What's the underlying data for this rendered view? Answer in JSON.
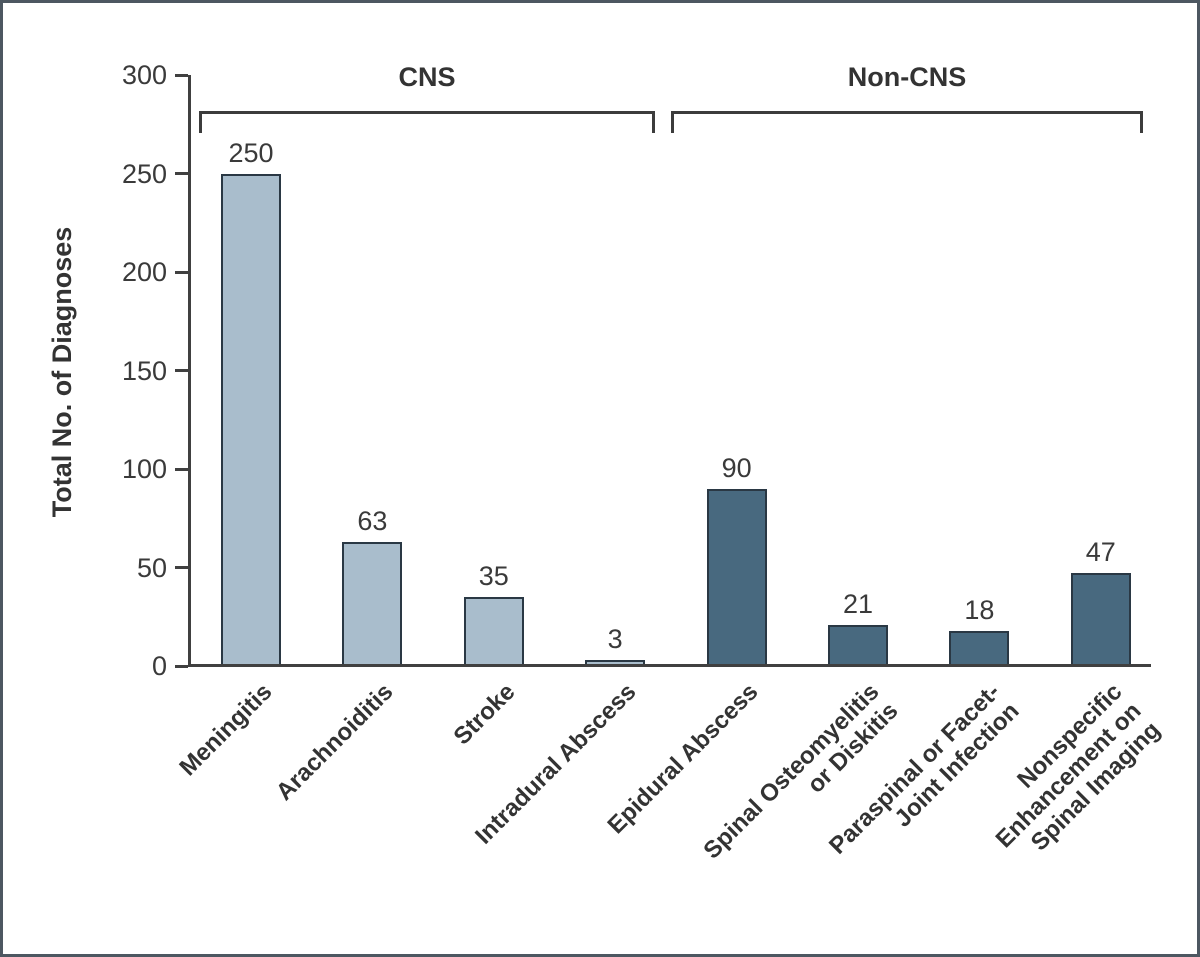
{
  "chart_data": {
    "type": "bar",
    "title": "",
    "xlabel": "",
    "ylabel": "Total No. of Diagnoses",
    "ylim": [
      0,
      300
    ],
    "yticks": [
      0,
      50,
      100,
      150,
      200,
      250,
      300
    ],
    "grid": false,
    "legend": "none",
    "categories": [
      "Meningitis",
      "Arachnoiditis",
      "Stroke",
      "Intradural Abscess",
      "Epidural Abscess",
      "Spinal Osteomyelitis\nor Diskitis",
      "Paraspinal or Facet-\nJoint Infection",
      "Nonspecific\nEnhancement on\nSpinal Imaging"
    ],
    "values": [
      250,
      63,
      35,
      3,
      90,
      21,
      18,
      47
    ],
    "bar_value_labels": [
      "250",
      "63",
      "35",
      "3",
      "90",
      "21",
      "18",
      "47"
    ],
    "groups": [
      {
        "name": "CNS",
        "indices": [
          0,
          1,
          2,
          3
        ],
        "fill": "#a9bdcc"
      },
      {
        "name": "Non-CNS",
        "indices": [
          4,
          5,
          6,
          7
        ],
        "fill": "#48697f"
      }
    ]
  },
  "colors": {
    "bar_border": "#2a3844",
    "axis": "#404040",
    "text": "#333333",
    "cns_fill": "#a9bdcc",
    "non_cns_fill": "#48697f",
    "frame_border": "#4d5761",
    "background": "#ffffff"
  }
}
